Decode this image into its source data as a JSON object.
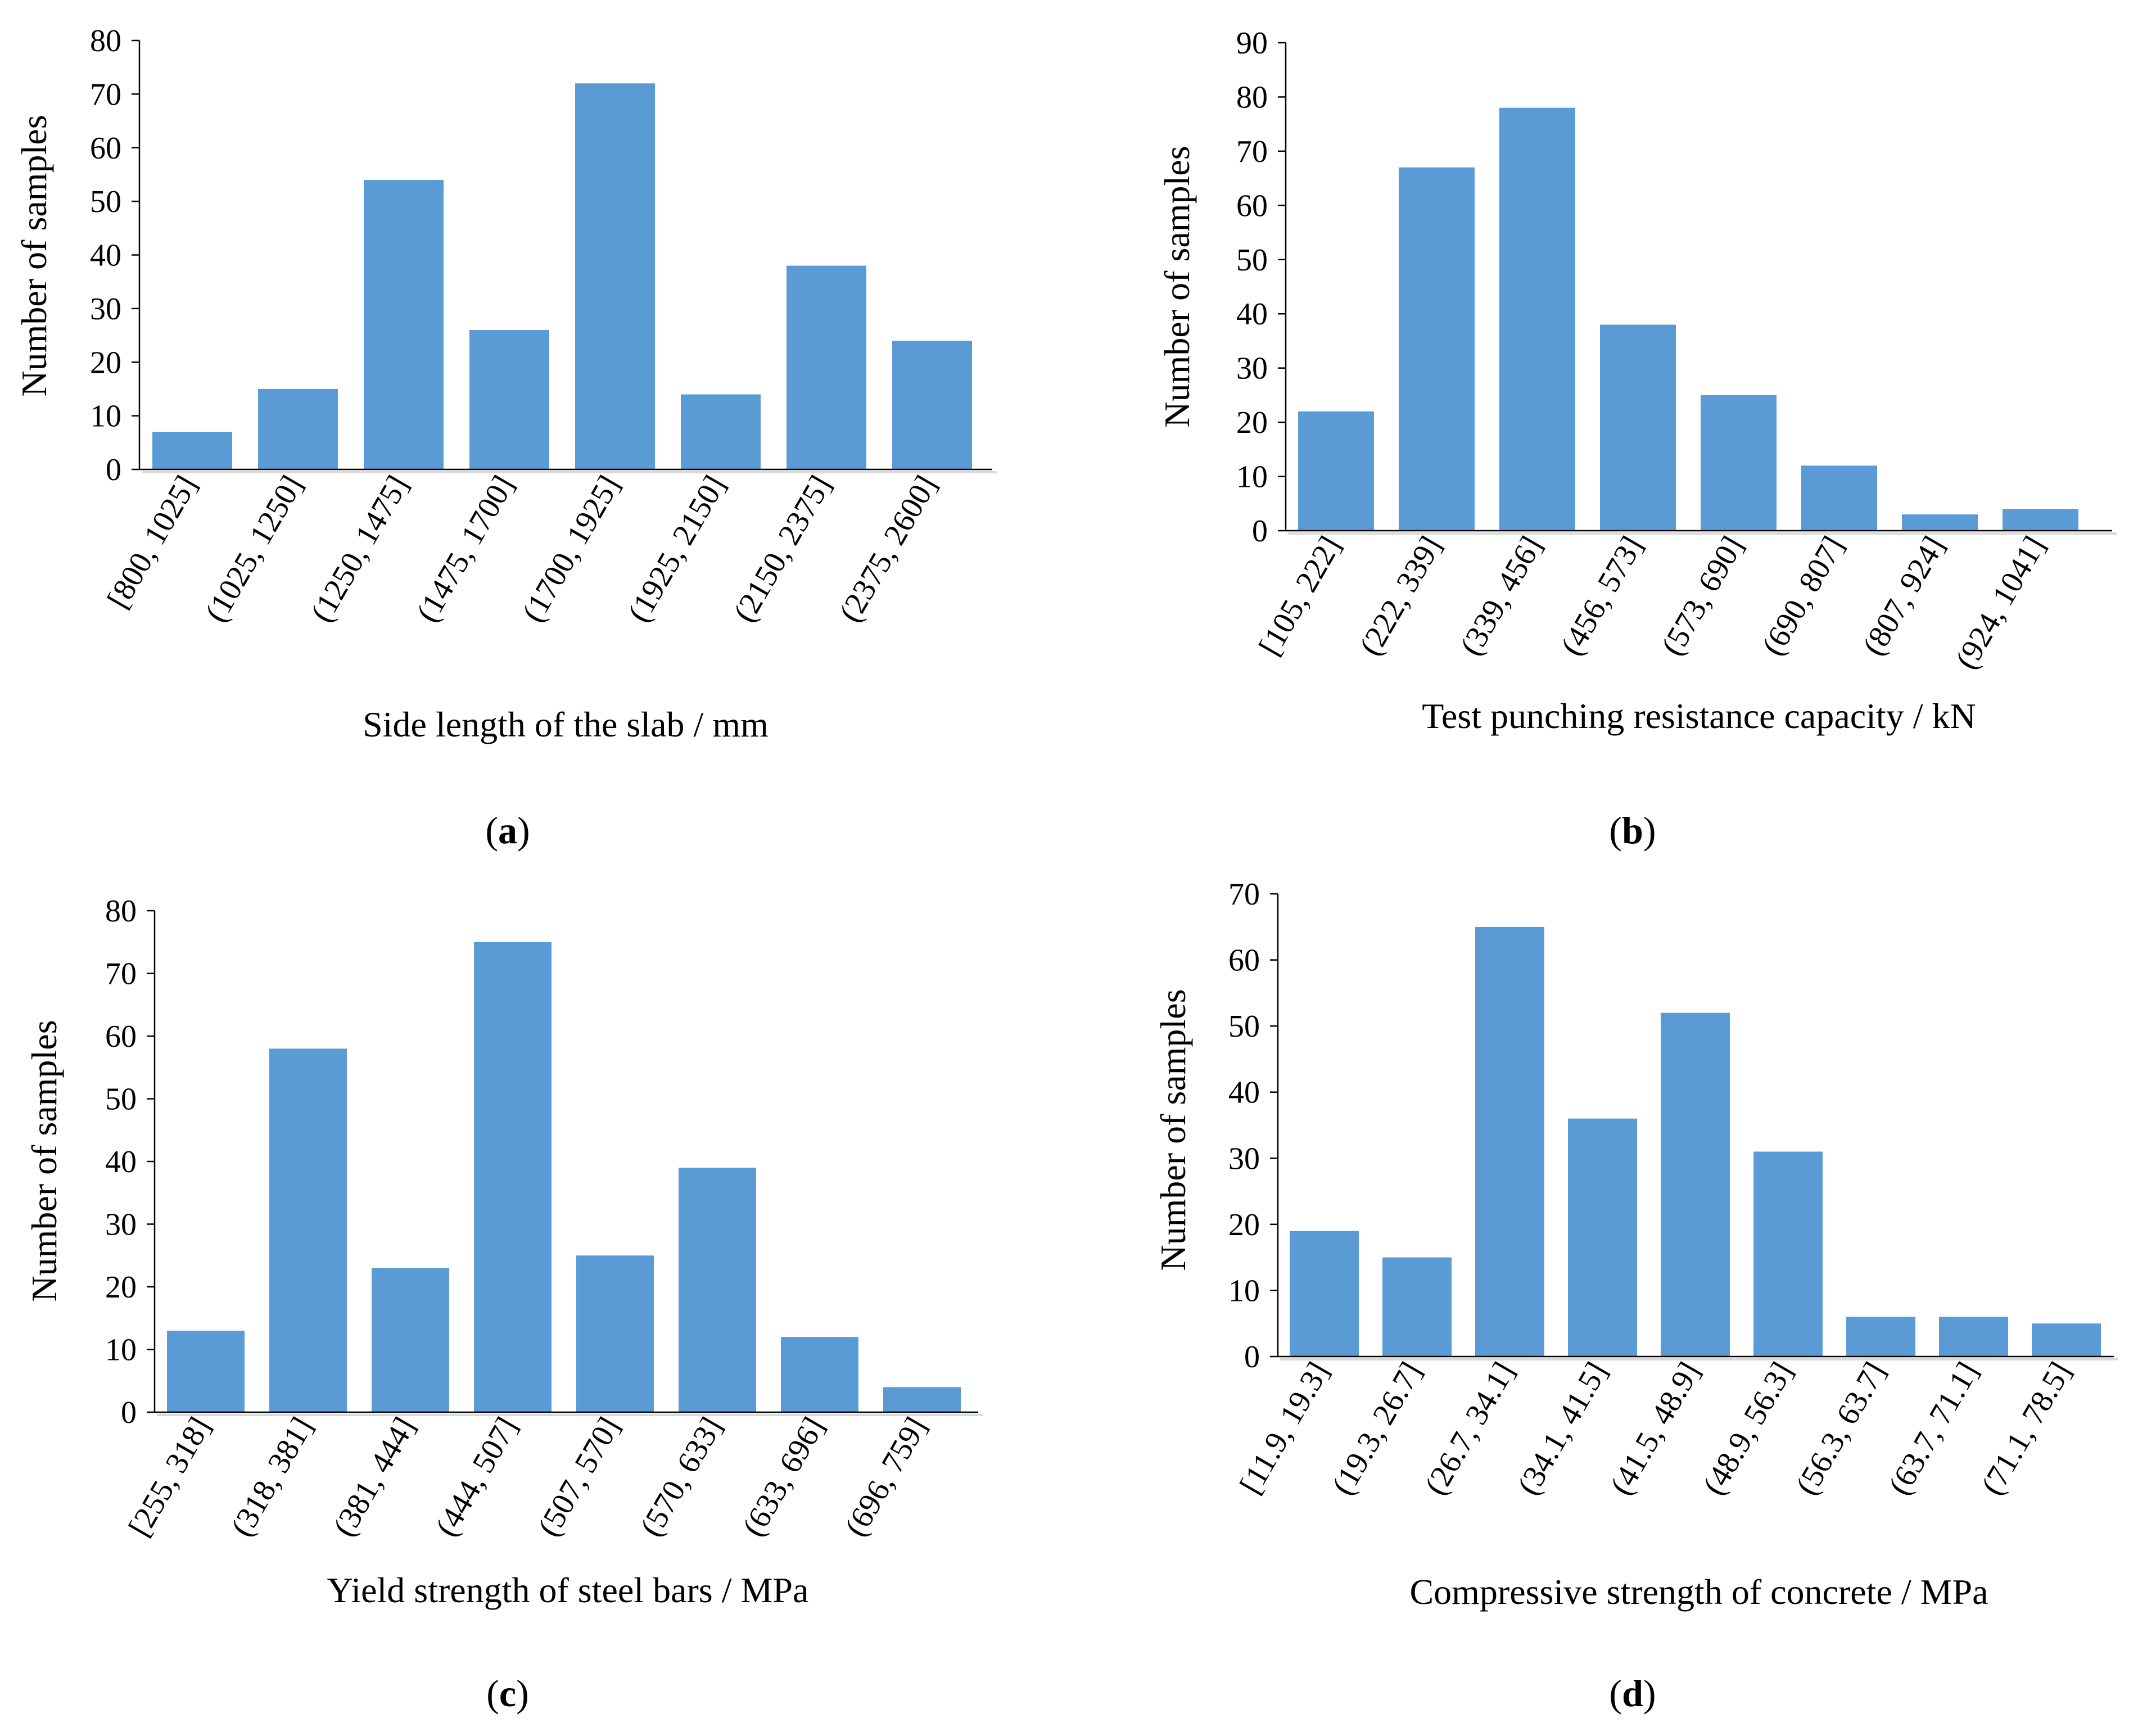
{
  "chart_data": [
    {
      "type": "bar",
      "panel_label": "a",
      "categories": [
        "[800, 1025]",
        "(1025, 1250]",
        "(1250, 1475]",
        "(1475, 1700]",
        "(1700, 1925]",
        "(1925, 2150]",
        "(2150, 2375]",
        "(2375, 2600]"
      ],
      "values": [
        7,
        15,
        54,
        26,
        72,
        14,
        38,
        24
      ],
      "xlabel": "Side length of the slab / mm",
      "ylabel": "Number of samples",
      "ylim": [
        0,
        80
      ],
      "yticks": [
        "0",
        "10",
        "20",
        "30",
        "40",
        "50",
        "60",
        "70",
        "80"
      ],
      "color": "#5b9bd5",
      "grid": false
    },
    {
      "type": "bar",
      "panel_label": "b",
      "categories": [
        "[105, 222]",
        "(222, 339]",
        "(339, 456]",
        "(456, 573]",
        "(573, 690]",
        "(690, 807]",
        "(807, 924]",
        "(924, 1041]"
      ],
      "values": [
        22,
        67,
        78,
        38,
        25,
        12,
        3,
        4
      ],
      "xlabel": "Test punching resistance capacity / kN",
      "ylabel": "Number of samples",
      "ylim": [
        0,
        90
      ],
      "yticks": [
        "0",
        "10",
        "20",
        "30",
        "40",
        "50",
        "60",
        "70",
        "80",
        "90"
      ],
      "color": "#5b9bd5",
      "grid": false
    },
    {
      "type": "bar",
      "panel_label": "c",
      "categories": [
        "[255, 318]",
        "(318, 381]",
        "(381, 444]",
        "(444, 507]",
        "(507, 570]",
        "(570, 633]",
        "(633, 696]",
        "(696, 759]"
      ],
      "values": [
        13,
        58,
        23,
        75,
        25,
        39,
        12,
        4
      ],
      "xlabel": "Yield strength of steel bars / MPa",
      "ylabel": "Number of samples",
      "ylim": [
        0,
        80
      ],
      "yticks": [
        "0",
        "10",
        "20",
        "30",
        "40",
        "50",
        "60",
        "70",
        "80"
      ],
      "color": "#5b9bd5",
      "grid": false
    },
    {
      "type": "bar",
      "panel_label": "d",
      "categories": [
        "[11.9, 19.3]",
        "(19.3, 26.7]",
        "(26.7, 34.1]",
        "(34.1, 41.5]",
        "(41.5, 48.9]",
        "(48.9, 56.3]",
        "(56.3, 63.7]",
        "(63.7, 71.1]",
        "(71.1, 78.5]"
      ],
      "values": [
        19,
        15,
        65,
        36,
        52,
        31,
        6,
        6,
        5
      ],
      "xlabel": "Compressive strength of concrete / MPa",
      "ylabel": "Number of samples",
      "ylim": [
        0,
        70
      ],
      "yticks": [
        "0",
        "10",
        "20",
        "30",
        "40",
        "50",
        "60",
        "70"
      ],
      "color": "#5b9bd5",
      "grid": false
    }
  ]
}
